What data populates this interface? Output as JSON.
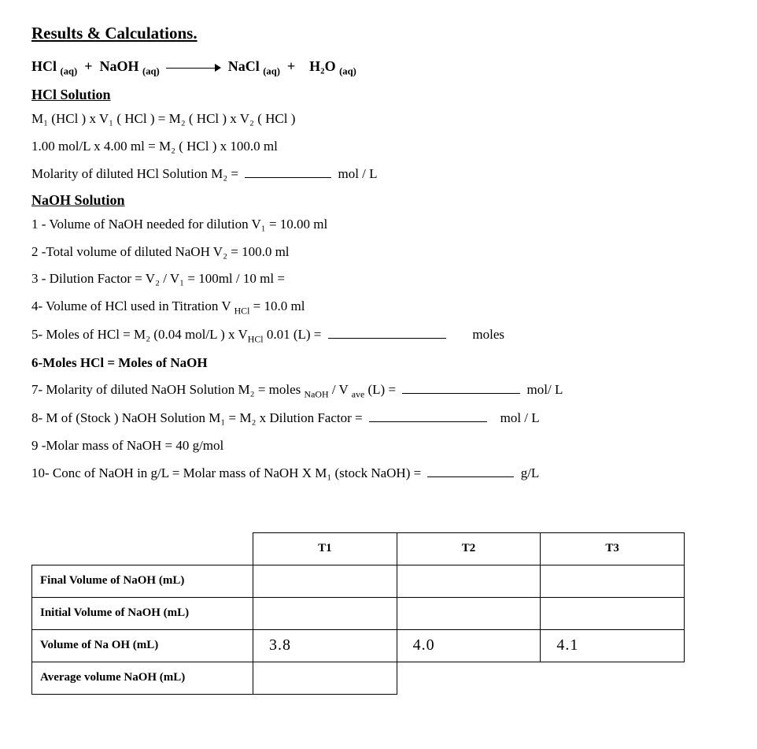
{
  "title": "Results & Calculations.",
  "equation": {
    "lhs1": "HCl",
    "sub1": "(aq)",
    "plus1": "+",
    "lhs2": "NaOH",
    "sub2": "(aq)",
    "rhs1": "NaCl",
    "sub3": "(aq)",
    "plus2": "+",
    "rhs2": "H₂O",
    "sub4": "(aq)"
  },
  "hcl_section": {
    "heading": "HCl  Solution",
    "line1": "M₁  (HCl  )    x   V₁   ( HCl   )    =  M₂   ( HCl  )   x   V₂ ( HCl   )",
    "line2": "1.00  mol/L    x    4.00 ml     =       M₂   (  HCl  )    x    100.0 ml",
    "line3_pre": "Molarity of diluted   HCl  Solution  M₂ =",
    "line3_unit": "mol  /  L"
  },
  "naoh_section": {
    "heading": "NaOH  Solution",
    "l1": "1 - Volume of   NaOH  needed   for dilution V₁ =    10.00   ml",
    "l2": "2 -Total volume of diluted  NaOH  V₂    =   100.0   ml",
    "l3": "3 - Dilution  Factor   =  V₂ /  V₁    = 100ml  /  10 ml    =",
    "l4_pre": "4- Volume of HCl used in Titration  V ",
    "l4_sub": "HCl",
    "l4_post": "  =  10.0  ml",
    "l5_pre": "5- Moles of  HCl   =   M₂  (0.04 mol/L  )  x   V",
    "l5_sub": "HCl",
    "l5_mid": "  0.01   (L)   =",
    "l5_unit": "moles",
    "l6": "6-Moles HCl   =  Moles of NaOH",
    "l7_pre": "7- Molarity of   diluted  NaOH   Solution  M₂ =   moles ",
    "l7_sub1": "NaOH",
    "l7_mid": "   /  V ",
    "l7_sub2": "ave",
    "l7_post": " (L)  =",
    "l7_unit": "mol/ L",
    "l8_pre": "8- M of  (Stock )  NaOH   Solution  M₁  = M₂  x Dilution  Factor   =",
    "l8_unit": "mol / L",
    "l9": "9 -Molar mass of NaOH  = 40 g/mol",
    "l10_pre": "10- Conc of NaOH   in  g/L  =  Molar mass of  NaOH  X  M₁ (stock NaOH)  =",
    "l10_unit": "g/L"
  },
  "table": {
    "headers": [
      "T1",
      "T2",
      "T3"
    ],
    "rowlabels": [
      "Final Volume of NaOH (mL)",
      "Initial  Volume of NaOH (mL)",
      "Volume of Na OH (mL)",
      "Average volume  NaOH (mL)"
    ],
    "volume_row": [
      "3.8",
      "4.0",
      "4.1"
    ]
  }
}
